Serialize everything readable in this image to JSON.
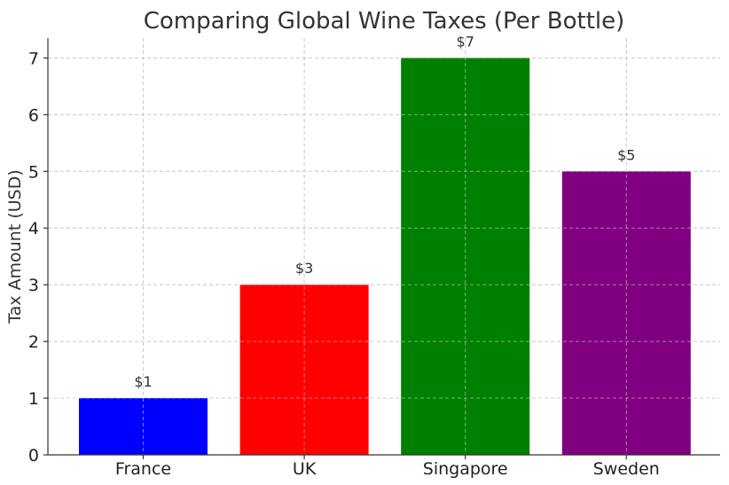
{
  "chart_data": {
    "type": "bar",
    "title": "Comparing Global Wine Taxes (Per Bottle)",
    "xlabel": "",
    "ylabel": "Tax Amount (USD)",
    "categories": [
      "France",
      "UK",
      "Singapore",
      "Sweden"
    ],
    "values": [
      1,
      3,
      7,
      5
    ],
    "data_labels": [
      "$1",
      "$3",
      "$7",
      "$5"
    ],
    "colors": [
      "#0000ff",
      "#ff0000",
      "#008000",
      "#800080"
    ],
    "ylim": [
      0,
      7.35
    ],
    "yticks": [
      0,
      1,
      2,
      3,
      4,
      5,
      6,
      7
    ],
    "grid": true
  }
}
